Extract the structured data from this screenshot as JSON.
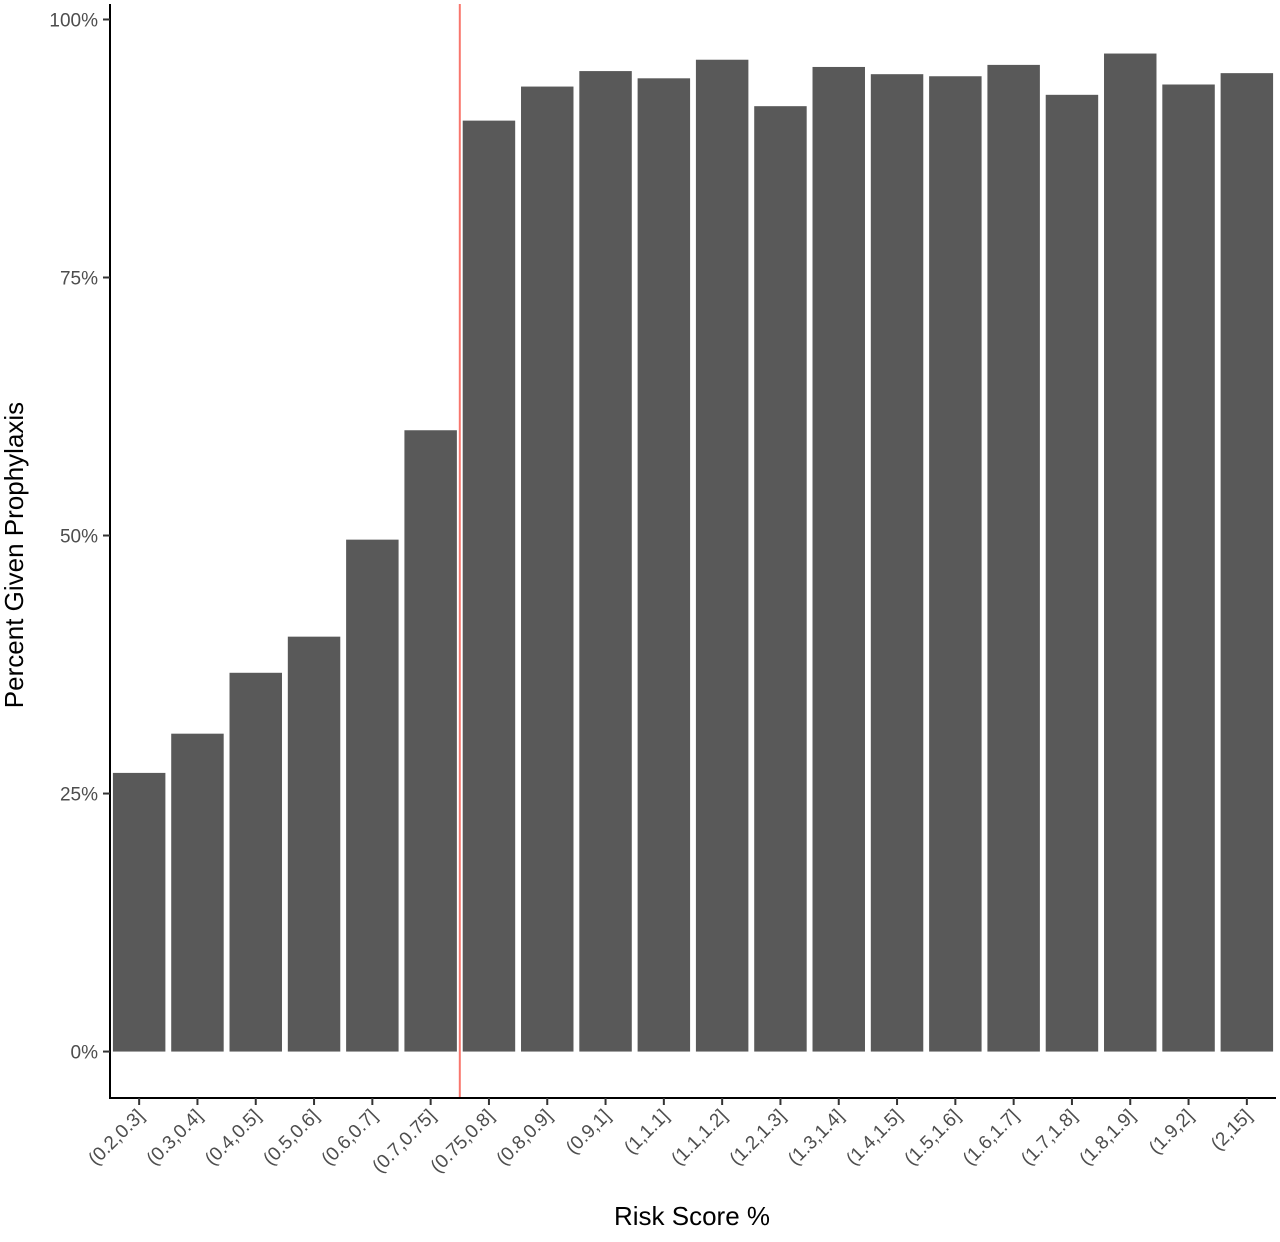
{
  "chart_data": {
    "type": "bar",
    "title": "",
    "xlabel": "Risk Score %",
    "ylabel": "Percent Given Prophylaxis",
    "categories": [
      "(0.2,0.3]",
      "(0.3,0.4]",
      "(0.4,0.5]",
      "(0.5,0.6]",
      "(0.6,0.7]",
      "(0.7,0.75]",
      "(0.75,0.8]",
      "(0.8,0.9]",
      "(0.9,1]",
      "(1,1.1]",
      "(1.1,1.2]",
      "(1.2,1.3]",
      "(1.3,1.4]",
      "(1.4,1.5]",
      "(1.5,1.6]",
      "(1.6,1.7]",
      "(1.7,1.8]",
      "(1.8,1.9]",
      "(1.9,2]",
      "(2,15]"
    ],
    "values": [
      27.0,
      30.8,
      36.7,
      40.2,
      49.6,
      60.2,
      90.2,
      93.5,
      95.0,
      94.3,
      96.1,
      91.6,
      95.4,
      94.7,
      94.5,
      95.6,
      92.7,
      96.7,
      93.7,
      94.8
    ],
    "yticks": [
      0,
      25,
      50,
      75,
      100
    ],
    "ytick_labels": [
      "0%",
      "25%",
      "50%",
      "75%",
      "100%"
    ],
    "ylim": [
      -4.5,
      101.5
    ],
    "bar_color": "#595959",
    "reference_line": {
      "x_between": [
        "(0.7,0.75]",
        "(0.75,0.8]"
      ],
      "color": "#f8766d"
    },
    "grid": false,
    "legend": "none"
  }
}
